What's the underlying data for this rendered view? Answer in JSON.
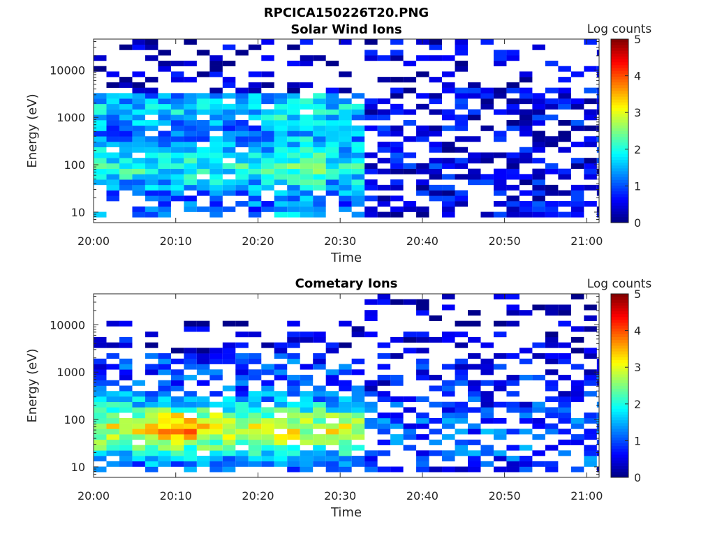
{
  "figure": {
    "title": "RPCICA150226T20.PNG"
  },
  "chart_data": [
    {
      "type": "heatmap",
      "title": "Solar Wind Ions",
      "xlabel": "Time",
      "ylabel": "Energy (eV)",
      "xticks": [
        "20:00",
        "20:10",
        "20:20",
        "20:30",
        "20:40",
        "20:50",
        "21:00"
      ],
      "yticks": [
        "10",
        "100",
        "1000",
        "10000"
      ],
      "y_scale": "log",
      "ylim": [
        6,
        45000
      ],
      "colorbar": {
        "label": "Log counts",
        "min": 0,
        "max": 5,
        "ticks": [
          "0",
          "1",
          "2",
          "3",
          "4",
          "5"
        ],
        "colormap": "jet"
      },
      "notes": "Counts are concentrated between 20:00 and about 20:32 at energies of 10 to 3000 eV; above 20:32 the signal is sparse and weak."
    },
    {
      "type": "heatmap",
      "title": "Cometary Ions",
      "xlabel": "Time",
      "ylabel": "Energy (eV)",
      "xticks": [
        "20:00",
        "20:10",
        "20:20",
        "20:30",
        "20:40",
        "20:50",
        "21:00"
      ],
      "yticks": [
        "10",
        "100",
        "1000",
        "10000"
      ],
      "y_scale": "log",
      "ylim": [
        6,
        45000
      ],
      "colorbar": {
        "label": "Log counts",
        "min": 0,
        "max": 5,
        "ticks": [
          "0",
          "1",
          "2",
          "3",
          "4",
          "5"
        ],
        "colormap": "jet"
      },
      "notes": "Highest counts (log counts near 3.5-4) near 20:08-20:12 at 30-150 eV; a broad band at 20 to 500 eV from 20:00 to 20:32, then weaker counts to 21:00."
    }
  ]
}
